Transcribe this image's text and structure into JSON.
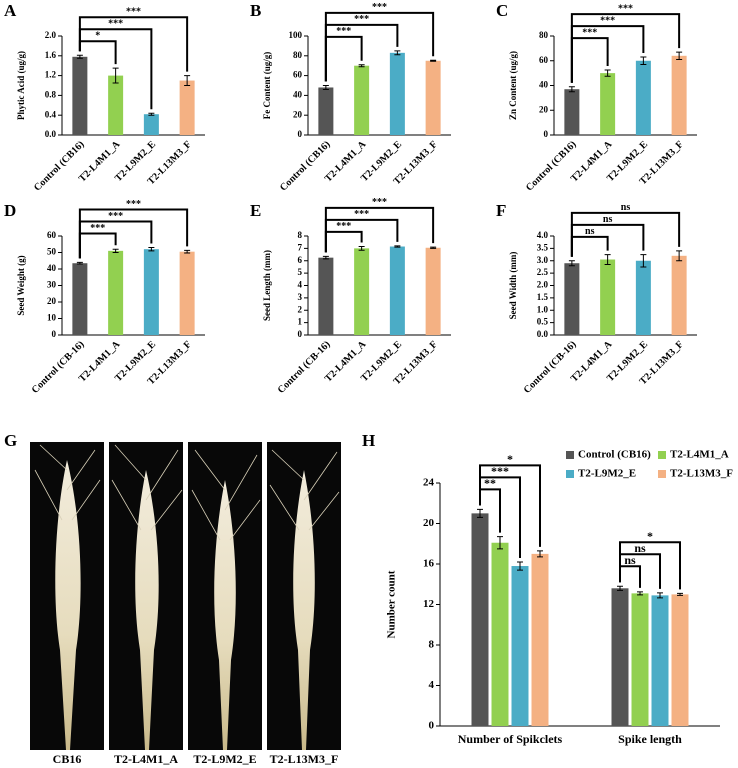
{
  "chart_data": [
    {
      "type": "bar",
      "label": "A",
      "ylabel": "Phytic Acid (ug/g)",
      "categories": [
        "Control (CB16)",
        "T2-L4M1_A",
        "T2-L9M2_E",
        "T2-L13M3_F"
      ],
      "values": [
        1.58,
        1.2,
        0.42,
        1.1
      ],
      "errors": [
        0.03,
        0.15,
        0.02,
        0.1
      ],
      "colors": [
        "#555555",
        "#92d050",
        "#4bacc6",
        "#f4b183"
      ],
      "significance": [
        "*",
        "***",
        "***"
      ],
      "ylim": [
        0,
        2.0
      ],
      "yticks": [
        {
          "value": 0,
          "label": "0.0"
        },
        0.4,
        0.8,
        1.2,
        1.6,
        {
          "value": 2,
          "label": "2.0"
        }
      ]
    },
    {
      "type": "bar",
      "label": "B",
      "ylabel": "Fe Content (ug/g)",
      "categories": [
        "Control (CB16)",
        "T2-L4M1_A",
        "T2-L9M2_E",
        "T2-L13M3_F"
      ],
      "values": [
        48,
        70,
        83,
        75
      ],
      "errors": [
        2,
        1,
        2,
        0.5
      ],
      "colors": [
        "#555555",
        "#92d050",
        "#4bacc6",
        "#f4b183"
      ],
      "significance": [
        "***",
        "***",
        "***"
      ],
      "ylim": [
        0,
        100
      ],
      "yticks": [
        0,
        20,
        40,
        60,
        80,
        100
      ]
    },
    {
      "type": "bar",
      "label": "C",
      "ylabel": "Zn Content (ug/g)",
      "categories": [
        "Control (CB16)",
        "T2-L4M1_A",
        "T2-L9M2_E",
        "T2-L13M3_F"
      ],
      "values": [
        37,
        50,
        60,
        64
      ],
      "errors": [
        2,
        2.5,
        3,
        3
      ],
      "colors": [
        "#555555",
        "#92d050",
        "#4bacc6",
        "#f4b183"
      ],
      "significance": [
        "***",
        "***",
        "***"
      ],
      "ylim": [
        0,
        80
      ],
      "yticks": [
        0,
        20,
        40,
        60,
        80
      ]
    },
    {
      "type": "bar",
      "label": "D",
      "ylabel": "Seed Weight (g)",
      "categories": [
        "Control (CB-16)",
        "T2-L4M1_A",
        "T2-L9M2_E",
        "T2-L13M3_F"
      ],
      "values": [
        43.5,
        51,
        52,
        50.5
      ],
      "errors": [
        0.5,
        1,
        1,
        0.8
      ],
      "colors": [
        "#555555",
        "#92d050",
        "#4bacc6",
        "#f4b183"
      ],
      "significance": [
        "***",
        "***",
        "***"
      ],
      "ylim": [
        0,
        60
      ],
      "yticks": [
        0,
        10,
        20,
        30,
        40,
        50,
        60
      ]
    },
    {
      "type": "bar",
      "label": "E",
      "ylabel": "Seed Length (mm)",
      "categories": [
        "Control (CB-16)",
        "T2-L4M1_A",
        "T2-L9M2_E",
        "T2-L13M3_F"
      ],
      "values": [
        6.25,
        7.0,
        7.15,
        7.05
      ],
      "errors": [
        0.1,
        0.15,
        0.05,
        0.05
      ],
      "colors": [
        "#555555",
        "#92d050",
        "#4bacc6",
        "#f4b183"
      ],
      "significance": [
        "***",
        "***",
        "***"
      ],
      "ylim": [
        0,
        8
      ],
      "yticks": [
        0,
        1,
        2,
        3,
        4,
        5,
        6,
        7,
        8
      ]
    },
    {
      "type": "bar",
      "label": "F",
      "ylabel": "Seed Width (mm)",
      "categories": [
        "Control (CB-16)",
        "T2-L4M1_A",
        "T2-L9M2_E",
        "T2-L13M3_F"
      ],
      "values": [
        2.9,
        3.05,
        3.0,
        3.2
      ],
      "errors": [
        0.1,
        0.2,
        0.25,
        0.2
      ],
      "colors": [
        "#555555",
        "#92d050",
        "#4bacc6",
        "#f4b183"
      ],
      "significance": [
        "ns",
        "ns",
        "ns"
      ],
      "ylim": [
        0,
        4.0
      ],
      "yticks": [
        {
          "value": 0,
          "label": "0.0"
        },
        0.5,
        {
          "value": 1,
          "label": "1.0"
        },
        1.5,
        {
          "value": 2,
          "label": "2.0"
        },
        2.5,
        {
          "value": 3,
          "label": "3.0"
        },
        3.5,
        {
          "value": 4,
          "label": "4.0"
        }
      ]
    },
    {
      "type": "grouped_bar",
      "label": "H",
      "ylabel": "Number count",
      "categories": [
        "Number of Spikclets",
        "Spike length"
      ],
      "series": [
        {
          "name": "Control (CB16)",
          "color": "#555555",
          "values": [
            21,
            13.6
          ],
          "errors": [
            0.4,
            0.2
          ]
        },
        {
          "name": "T2-L4M1_A",
          "color": "#92d050",
          "values": [
            18.1,
            13.1
          ],
          "errors": [
            0.6,
            0.15
          ]
        },
        {
          "name": "T2-L9M2_E",
          "color": "#4bacc6",
          "values": [
            15.8,
            12.9
          ],
          "errors": [
            0.4,
            0.25
          ]
        },
        {
          "name": "T2-L13M3_F",
          "color": "#f4b183",
          "values": [
            17,
            13
          ],
          "errors": [
            0.3,
            0.1
          ]
        }
      ],
      "significance": [
        [
          "**",
          "***",
          "*"
        ],
        [
          "ns",
          "ns",
          "*"
        ]
      ],
      "legend": "upper right",
      "ylim": [
        0,
        24
      ],
      "yticks": [
        0,
        4,
        8,
        12,
        16,
        20,
        24
      ]
    }
  ],
  "photo_panel": {
    "label": "G",
    "captions": [
      "CB16",
      "T2-L4M1_A",
      "T2-L9M2_E",
      "T2-L13M3_F"
    ]
  }
}
